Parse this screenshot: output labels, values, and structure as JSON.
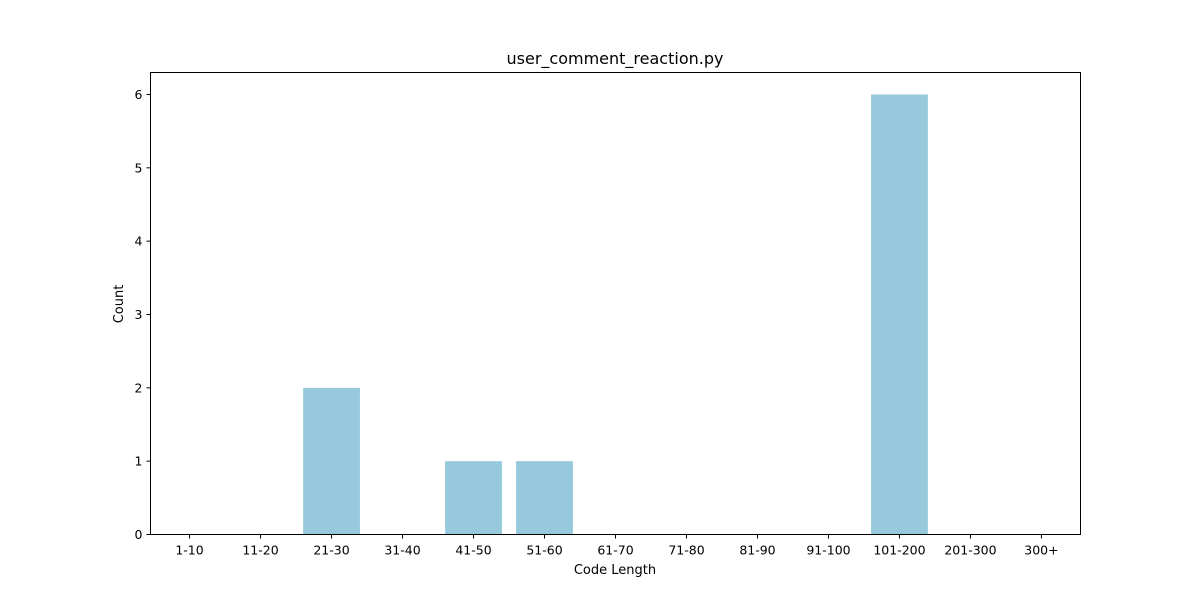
{
  "chart_data": {
    "type": "bar",
    "title": "user_comment_reaction.py",
    "xlabel": "Code Length",
    "ylabel": "Count",
    "categories": [
      "1-10",
      "11-20",
      "21-30",
      "31-40",
      "41-50",
      "51-60",
      "61-70",
      "71-80",
      "81-90",
      "91-100",
      "101-200",
      "201-300",
      "300+"
    ],
    "values": [
      0,
      0,
      2,
      0,
      1,
      1,
      0,
      0,
      0,
      0,
      6,
      0,
      0
    ],
    "yticks": [
      0,
      1,
      2,
      3,
      4,
      5,
      6
    ],
    "ylim": [
      0,
      6.3
    ],
    "grid": false,
    "legend": "none",
    "bar_color": "#96c9dc"
  }
}
